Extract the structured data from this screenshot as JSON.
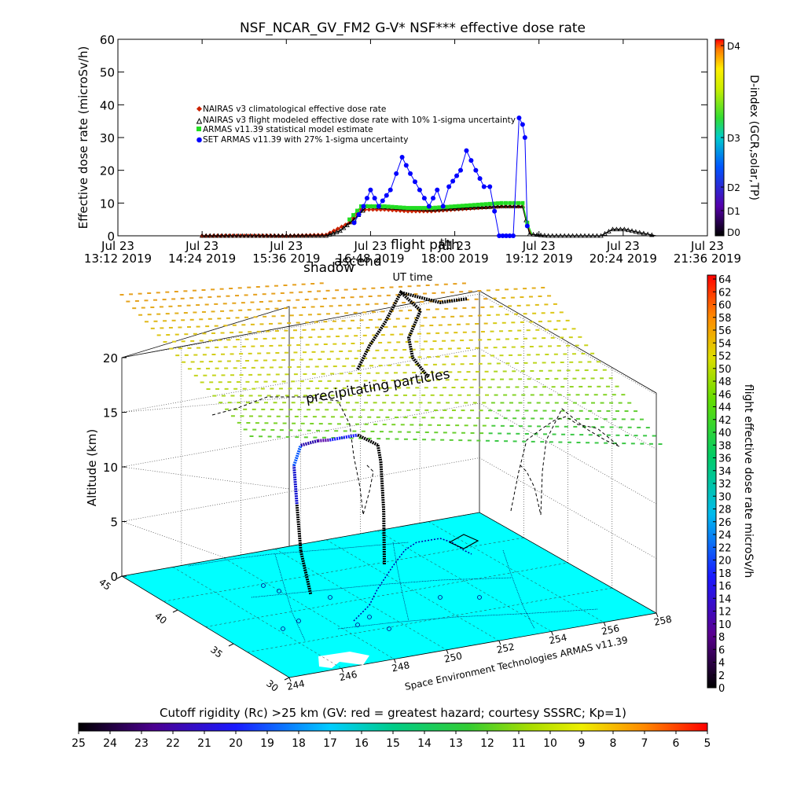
{
  "colors": {
    "nairas_clim": "#cc2200",
    "armas_stat": "#22dd22",
    "set_armas": "#0000ff",
    "ocean": "#00ffff",
    "land": "#ffffff"
  },
  "chart_data": [
    {
      "type": "scatter",
      "title": "NSF_NCAR_GV_FM2 G-V* NSF*** effective dose rate",
      "xlabel": "UT time",
      "ylabel": "Effective dose rate (microSv/h)",
      "ylim": [
        0,
        60
      ],
      "yticks": [
        "0",
        "10",
        "20",
        "30",
        "40",
        "50",
        "60"
      ],
      "xticks": [
        {
          "t": "13:12",
          "l1": "Jul 23",
          "l2": "13:12 2019"
        },
        {
          "t": "14:24",
          "l1": "Jul 23",
          "l2": "14:24 2019"
        },
        {
          "t": "15:36",
          "l1": "Jul 23",
          "l2": "15:36 2019"
        },
        {
          "t": "16:48",
          "l1": "Jul 23",
          "l2": "16:48 2019"
        },
        {
          "t": "18:00",
          "l1": "Jul 23",
          "l2": "18:00 2019"
        },
        {
          "t": "19:12",
          "l1": "Jul 23",
          "l2": "19:12 2019"
        },
        {
          "t": "20:24",
          "l1": "Jul 23",
          "l2": "20:24 2019"
        },
        {
          "t": "21:36",
          "l1": "Jul 23",
          "l2": "21:36 2019"
        }
      ],
      "xlim": [
        "13:12",
        "21:36"
      ],
      "overlay_labels": [
        "th",
        "shadow",
        "ascend",
        "flight path"
      ],
      "legend": [
        {
          "label": "NAIRAS v3 climatological effective dose rate",
          "color": "#cc2200",
          "marker": "diamond"
        },
        {
          "label": "NAIRAS v3 flight modeled effective dose rate with 10% 1-sigma uncertainty",
          "color": "#000000",
          "marker": "triangle"
        },
        {
          "label": "ARMAS v11.39 statistical model estimate",
          "color": "#22dd22",
          "marker": "square"
        },
        {
          "label": "SET ARMAS v11.39 with 27% 1-sigma uncertainty",
          "color": "#0000ff",
          "marker": "circle"
        }
      ],
      "series": [
        {
          "name": "NAIRAS v3 climatological effective dose rate",
          "points": [
            [
              "14:24",
              0
            ],
            [
              "15:00",
              0
            ],
            [
              "15:36",
              0
            ],
            [
              "16:10",
              0.3
            ],
            [
              "16:30",
              4
            ],
            [
              "16:40",
              8
            ],
            [
              "17:00",
              8
            ],
            [
              "17:20",
              7.5
            ],
            [
              "17:40",
              7.5
            ],
            [
              "18:00",
              8
            ],
            [
              "18:20",
              8.5
            ],
            [
              "18:40",
              9
            ],
            [
              "18:58",
              9
            ],
            [
              "19:02",
              3
            ],
            [
              "19:06",
              0
            ]
          ]
        },
        {
          "name": "NAIRAS v3 flight modeled effective dose rate with 10% 1-sigma uncertainty",
          "points": [
            [
              "14:24",
              0
            ],
            [
              "15:36",
              0
            ],
            [
              "16:10",
              0
            ],
            [
              "16:22",
              1.5
            ],
            [
              "16:34",
              5
            ],
            [
              "16:45",
              9
            ],
            [
              "17:10",
              8.5
            ],
            [
              "17:40",
              8
            ],
            [
              "18:10",
              8.5
            ],
            [
              "18:40",
              9
            ],
            [
              "18:58",
              9
            ],
            [
              "19:04",
              0.5
            ],
            [
              "19:20",
              0
            ],
            [
              "20:05",
              0
            ],
            [
              "20:15",
              2
            ],
            [
              "20:25",
              2
            ],
            [
              "20:38",
              1
            ],
            [
              "20:52",
              0
            ]
          ]
        },
        {
          "name": "ARMAS v11.39 statistical model estimate",
          "points": [
            [
              "16:30",
              5
            ],
            [
              "16:40",
              9
            ],
            [
              "17:00",
              9
            ],
            [
              "17:20",
              8.5
            ],
            [
              "17:40",
              8.5
            ],
            [
              "18:00",
              9
            ],
            [
              "18:20",
              9.5
            ],
            [
              "18:40",
              10
            ],
            [
              "18:58",
              10
            ],
            [
              "19:02",
              4
            ],
            [
              "19:06",
              0.5
            ]
          ]
        },
        {
          "name": "SET ARMAS v11.39 with 27% 1-sigma uncertainty",
          "points": [
            [
              "16:34",
              4
            ],
            [
              "16:42",
              9
            ],
            [
              "16:48",
              14
            ],
            [
              "16:55",
              9
            ],
            [
              "17:05",
              14
            ],
            [
              "17:10",
              19
            ],
            [
              "17:15",
              24
            ],
            [
              "17:22",
              19
            ],
            [
              "17:30",
              14
            ],
            [
              "17:38",
              9
            ],
            [
              "17:45",
              14
            ],
            [
              "17:50",
              9
            ],
            [
              "17:55",
              15
            ],
            [
              "18:05",
              20
            ],
            [
              "18:10",
              26
            ],
            [
              "18:18",
              20
            ],
            [
              "18:25",
              15
            ],
            [
              "18:30",
              15
            ],
            [
              "18:38",
              0
            ],
            [
              "18:50",
              0
            ],
            [
              "18:55",
              36
            ],
            [
              "18:58",
              34
            ],
            [
              "19:00",
              30
            ],
            [
              "19:02",
              3
            ]
          ]
        }
      ]
    },
    {
      "type": "colorbar",
      "title": "D-index (GCR,solar,TP)",
      "labels": [
        "D0",
        "D1",
        "D2",
        "D3",
        "D4"
      ],
      "colors": [
        "#000000",
        "#5500aa",
        "#0055ff",
        "#00cc66",
        "#66ee00",
        "#ffff00",
        "#ff8800",
        "#ff0000"
      ]
    },
    {
      "type": "scatter3d",
      "zlabel": "Altitude (km)",
      "zticks": [
        "0",
        "5",
        "10",
        "15",
        "20"
      ],
      "zlim": [
        0,
        20
      ],
      "lat_ticks": [
        "30",
        "35",
        "40",
        "45"
      ],
      "lon_ticks": [
        "244",
        "246",
        "248",
        "250",
        "252",
        "254",
        "256",
        "258"
      ],
      "annotation": "precipitating particles",
      "credit": "Space Environment Technologies ARMAS v11.39",
      "flight_track": [
        [
          248.5,
          38.5,
          0.5
        ],
        [
          249,
          40.5,
          3
        ],
        [
          249.6,
          42.2,
          6
        ],
        [
          249.8,
          42.9,
          9
        ],
        [
          250.2,
          43.2,
          10.5
        ],
        [
          251,
          43.5,
          10.4
        ],
        [
          251.5,
          43.6,
          10.2
        ],
        [
          252.6,
          43.6,
          10.2
        ],
        [
          252.8,
          42.3,
          10
        ],
        [
          252.6,
          41.6,
          9
        ],
        [
          252.4,
          40.9,
          5
        ],
        [
          252.2,
          40.4,
          0.5
        ]
      ]
    },
    {
      "type": "colorbar",
      "title": "flight effective dose rate microSv/h",
      "range": [
        0,
        64
      ],
      "ticks": [
        "0",
        "2",
        "4",
        "6",
        "8",
        "10",
        "12",
        "14",
        "16",
        "18",
        "20",
        "22",
        "24",
        "26",
        "28",
        "30",
        "32",
        "34",
        "36",
        "38",
        "40",
        "42",
        "44",
        "46",
        "48",
        "50",
        "52",
        "54",
        "56",
        "58",
        "60",
        "62",
        "64"
      ]
    },
    {
      "type": "colorbar",
      "title": "Cutoff rigidity (Rc) >25 km (GV: red = greatest hazard; courtesy SSSRC; Kp=1)",
      "ticks": [
        "25",
        "24",
        "23",
        "22",
        "21",
        "20",
        "19",
        "18",
        "17",
        "16",
        "15",
        "14",
        "13",
        "12",
        "11",
        "10",
        "9",
        "8",
        "7",
        "6",
        "5"
      ]
    }
  ]
}
